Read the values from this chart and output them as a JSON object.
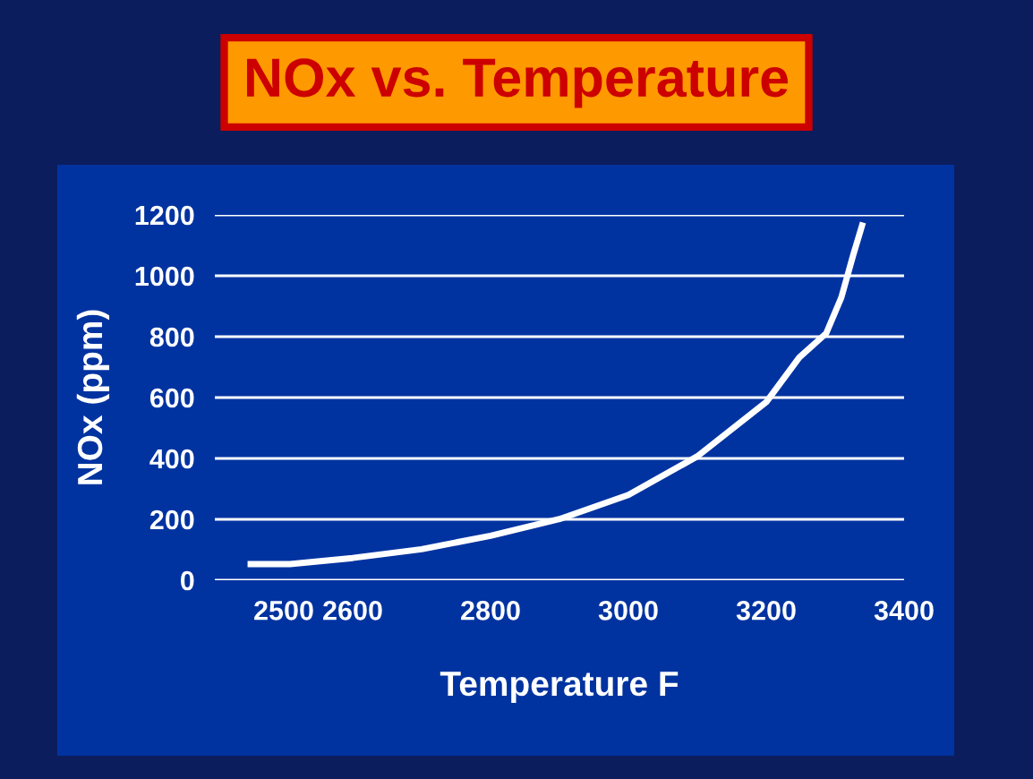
{
  "chart_data": {
    "type": "line",
    "title": "NOx vs. Temperature",
    "xlabel": "Temperature F",
    "ylabel": "NOx (ppm)",
    "x": [
      2452,
      2509,
      2600,
      2700,
      2800,
      2900,
      3000,
      3100,
      3200,
      3248,
      3287,
      3309,
      3326,
      3339
    ],
    "series": [
      {
        "color": "#ffffff",
        "values": [
          53,
          53,
          73,
          102,
          146,
          201,
          280,
          407,
          585,
          732,
          811,
          929,
          1067,
          1165
        ]
      }
    ],
    "xlim": [
      2400,
      3400
    ],
    "xticks": [
      2500,
      2600,
      2800,
      3000,
      3200,
      3400
    ],
    "ylim": [
      0,
      1200
    ],
    "yticks": [
      0,
      200,
      400,
      600,
      800,
      1000,
      1200
    ],
    "grid": "y",
    "marker": "none",
    "line_style": "solid",
    "legend": false
  }
}
